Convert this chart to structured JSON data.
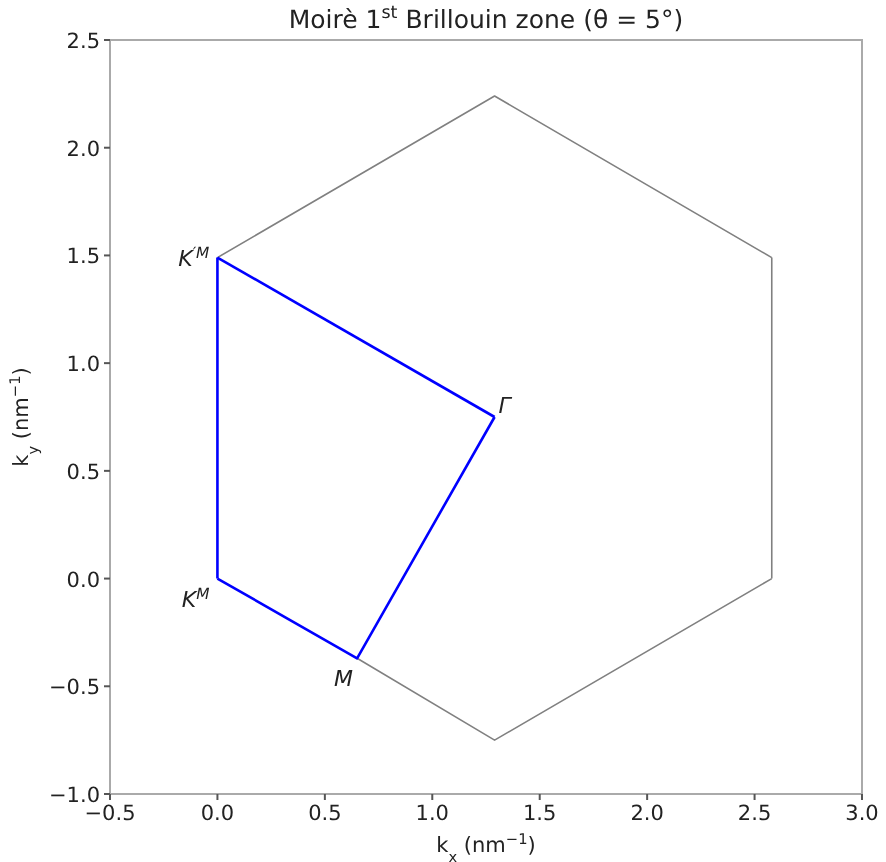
{
  "chart_data": {
    "type": "line",
    "title": "Moirè 1$^{st}$ Brillouin zone (θ = 5°)",
    "xlabel": "k$_{x}$ (nm$^{−1}$)",
    "ylabel": "k$_{y}$ (nm$^{−1}$)",
    "series": [
      {
        "color": "#808080",
        "x": [
          0,
          1.29,
          2.58
        ],
        "values": [
          1.49,
          2.24,
          1.49
        ]
      },
      {
        "color": "#808080",
        "x": [
          2.58,
          2.58
        ],
        "values": [
          1.49,
          0
        ]
      },
      {
        "color": "#808080",
        "x": [
          0.65,
          1.29,
          2.58
        ],
        "values": [
          -0.37,
          -0.75,
          0
        ]
      },
      {
        "color": "#0000ff",
        "x": [
          0,
          1.29
        ],
        "values": [
          1.49,
          0.75
        ]
      },
      {
        "color": "#0000ff",
        "x": [
          0,
          0.65,
          1.29
        ],
        "values": [
          0,
          -0.37,
          0.75
        ]
      },
      {
        "color": "#0000ff",
        "x": [
          0,
          0
        ],
        "values": [
          0,
          1.49
        ]
      }
    ],
    "annotations": [
      {
        "text": "K$^{′M}$",
        "x": 0,
        "y": 1.49
      },
      {
        "text": "Γ",
        "x": 1.29,
        "y": 0.75
      },
      {
        "text": "M",
        "x": 0.65,
        "y": -0.37
      },
      {
        "text": "K$^{M}$",
        "x": 0,
        "y": 0
      }
    ],
    "xlim": [
      -0.5,
      3.0
    ],
    "ylim": [
      -1.0,
      2.5
    ],
    "xticks": [
      {
        "value": -0.5,
        "label": "−0.5"
      },
      {
        "value": 0,
        "label": "0.0"
      },
      {
        "value": 0.5,
        "label": "0.5"
      },
      {
        "value": 1,
        "label": "1.0"
      },
      {
        "value": 1.5,
        "label": "1.5"
      },
      {
        "value": 2,
        "label": "2.0"
      },
      {
        "value": 2.5,
        "label": "2.5"
      },
      {
        "value": 3,
        "label": "3.0"
      }
    ],
    "yticks": [
      {
        "value": -1,
        "label": "−1.0"
      },
      {
        "value": -0.5,
        "label": "−0.5"
      },
      {
        "value": 0,
        "label": "0.0"
      },
      {
        "value": 0.5,
        "label": "0.5"
      },
      {
        "value": 1,
        "label": "1.0"
      },
      {
        "value": 1.5,
        "label": "1.5"
      },
      {
        "value": 2,
        "label": "2.0"
      },
      {
        "value": 2.5,
        "label": "2.5"
      }
    ],
    "grid": false,
    "marker": "none",
    "line_style": "solid"
  }
}
